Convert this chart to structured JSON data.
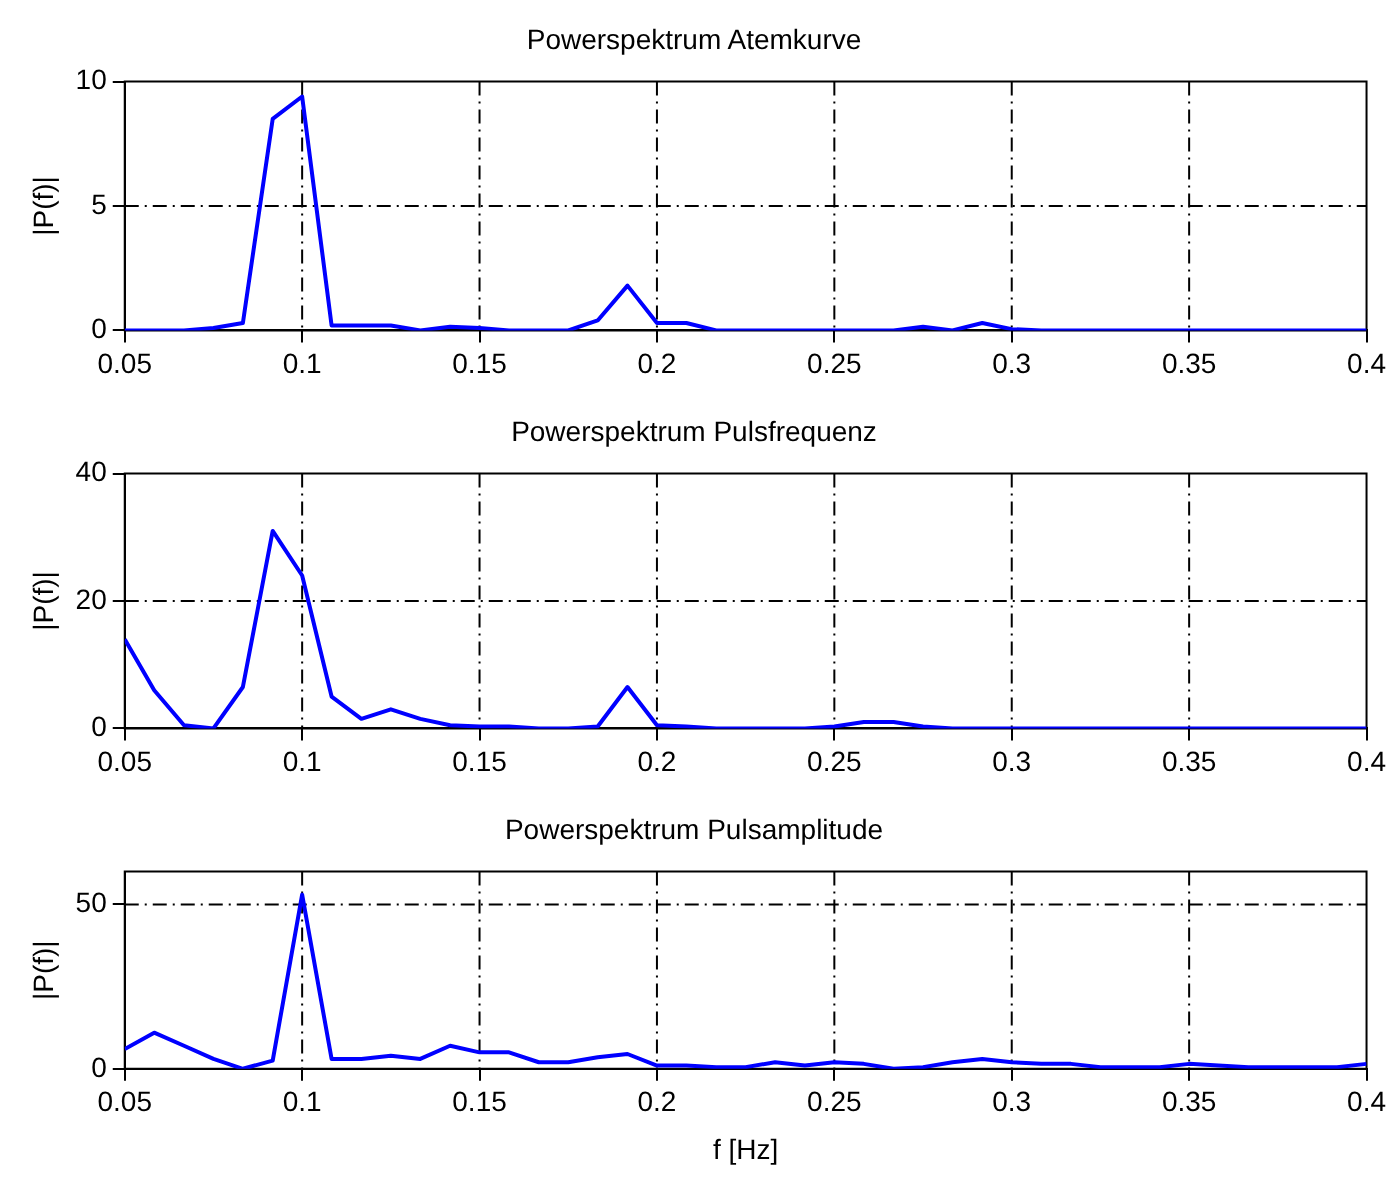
{
  "chart_data": [
    {
      "type": "line",
      "title": "Powerspektrum Atemkurve",
      "ylabel": "|P(f)|",
      "x": [
        0.05,
        0.0583,
        0.0667,
        0.075,
        0.0833,
        0.0917,
        0.1,
        0.1083,
        0.1167,
        0.125,
        0.1333,
        0.1417,
        0.15,
        0.1583,
        0.1667,
        0.175,
        0.1833,
        0.1917,
        0.2,
        0.2083,
        0.2167,
        0.225,
        0.2333,
        0.2417,
        0.25,
        0.2583,
        0.2667,
        0.275,
        0.2833,
        0.2917,
        0.3,
        0.3083,
        0.3167,
        0.325,
        0.3333,
        0.3417,
        0.35,
        0.3583,
        0.3667,
        0.375,
        0.3833,
        0.3917,
        0.4
      ],
      "series": [
        {
          "color": "#0000ff",
          "values": [
            0,
            0,
            0,
            0.1,
            0.3,
            8.5,
            9.4,
            0.2,
            0.2,
            0.2,
            0,
            0.15,
            0.1,
            0,
            0,
            0,
            0.4,
            1.8,
            0.3,
            0.3,
            0,
            0,
            0,
            0,
            0,
            0,
            0,
            0.15,
            0,
            0.3,
            0.05,
            0,
            0,
            0,
            0,
            0,
            0,
            0,
            0,
            0,
            0,
            0,
            0
          ]
        }
      ],
      "xlim": [
        0.05,
        0.4
      ],
      "xticks": [
        0.05,
        0.1,
        0.15,
        0.2,
        0.25,
        0.3,
        0.35,
        0.4
      ],
      "ylim": [
        0,
        10
      ],
      "yticks": [
        0,
        5,
        10
      ],
      "grid": true,
      "line_style": "solid"
    },
    {
      "type": "line",
      "title": "Powerspektrum Pulsfrequenz",
      "ylabel": "|P(f)|",
      "x": [
        0.05,
        0.0583,
        0.0667,
        0.075,
        0.0833,
        0.0917,
        0.1,
        0.1083,
        0.1167,
        0.125,
        0.1333,
        0.1417,
        0.15,
        0.1583,
        0.1667,
        0.175,
        0.1833,
        0.1917,
        0.2,
        0.2083,
        0.2167,
        0.225,
        0.2333,
        0.2417,
        0.25,
        0.2583,
        0.2667,
        0.275,
        0.2833,
        0.2917,
        0.3,
        0.3083,
        0.3167,
        0.325,
        0.3333,
        0.3417,
        0.35,
        0.3583,
        0.3667,
        0.375,
        0.3833,
        0.3917,
        0.4
      ],
      "series": [
        {
          "color": "#0000ff",
          "values": [
            14,
            6,
            0.5,
            0,
            6.5,
            31,
            24,
            5,
            1.5,
            3,
            1.5,
            0.5,
            0.3,
            0.3,
            0,
            0,
            0.3,
            6.5,
            0.5,
            0.3,
            0,
            0,
            0,
            0,
            0.3,
            1,
            1,
            0.3,
            0,
            0,
            0,
            0,
            0,
            0,
            0,
            0,
            0,
            0,
            0,
            0,
            0,
            0,
            0
          ]
        }
      ],
      "xlim": [
        0.05,
        0.4
      ],
      "xticks": [
        0.05,
        0.1,
        0.15,
        0.2,
        0.25,
        0.3,
        0.35,
        0.4
      ],
      "ylim": [
        0,
        40
      ],
      "yticks": [
        0,
        20,
        40
      ],
      "grid": true,
      "line_style": "solid"
    },
    {
      "type": "line",
      "title": "Powerspektrum Pulsamplitude",
      "ylabel": "|P(f)|",
      "xlabel": "f [Hz]",
      "x": [
        0.05,
        0.0583,
        0.0667,
        0.075,
        0.0833,
        0.0917,
        0.1,
        0.1083,
        0.1167,
        0.125,
        0.1333,
        0.1417,
        0.15,
        0.1583,
        0.1667,
        0.175,
        0.1833,
        0.1917,
        0.2,
        0.2083,
        0.2167,
        0.225,
        0.2333,
        0.2417,
        0.25,
        0.2583,
        0.2667,
        0.275,
        0.2833,
        0.2917,
        0.3,
        0.3083,
        0.3167,
        0.325,
        0.3333,
        0.3417,
        0.35,
        0.3583,
        0.3667,
        0.375,
        0.3833,
        0.3917,
        0.4
      ],
      "series": [
        {
          "color": "#0000ff",
          "values": [
            6,
            11,
            7,
            3,
            0,
            2.5,
            53,
            3,
            3,
            4,
            3,
            7,
            5,
            5,
            2,
            2,
            3.5,
            4.5,
            1,
            1,
            0.5,
            0.5,
            2,
            1,
            2,
            1.5,
            0,
            0.5,
            2,
            3,
            2,
            1.5,
            1.5,
            0.5,
            0.5,
            0.5,
            1.5,
            1,
            0.5,
            0.5,
            0.5,
            0.5,
            1.5
          ]
        }
      ],
      "xlim": [
        0.05,
        0.4
      ],
      "xticks": [
        0.05,
        0.1,
        0.15,
        0.2,
        0.25,
        0.3,
        0.35,
        0.4
      ],
      "ylim": [
        0,
        60
      ],
      "yticks": [
        0,
        50
      ],
      "grid": true,
      "line_style": "solid"
    }
  ]
}
